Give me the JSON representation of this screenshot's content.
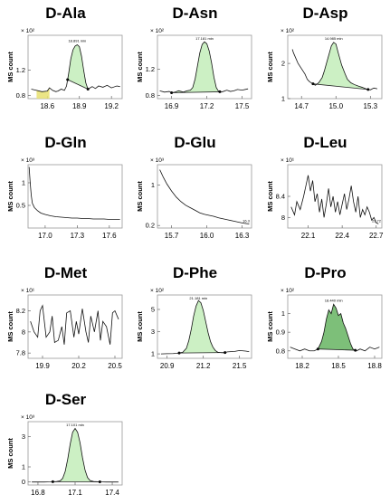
{
  "chart_data": [
    {
      "type": "line",
      "title": "D-Ala",
      "ylabel": "MS count",
      "yexp": "× 10²",
      "x": [
        18.45,
        18.5,
        18.55,
        18.6,
        18.62,
        18.65,
        18.68,
        18.7,
        18.73,
        18.76,
        18.78,
        18.8,
        18.82,
        18.84,
        18.86,
        18.88,
        18.9,
        18.92,
        18.94,
        18.96,
        18.98,
        19.0,
        19.02,
        19.05,
        19.08,
        19.12,
        19.16,
        19.2,
        19.25,
        19.28
      ],
      "y": [
        0.9,
        0.88,
        0.86,
        0.87,
        0.92,
        0.88,
        0.86,
        0.87,
        0.9,
        0.88,
        0.95,
        1.15,
        1.38,
        1.52,
        1.58,
        1.6,
        1.57,
        1.42,
        1.2,
        1.0,
        0.9,
        0.92,
        0.94,
        0.91,
        0.95,
        0.93,
        0.96,
        0.92,
        0.95,
        0.94
      ],
      "peak": [
        18.79,
        18.98
      ],
      "peak_label": "18.891 min",
      "shade": [
        18.5,
        18.62
      ],
      "xticks": [
        18.6,
        18.9,
        19.2
      ],
      "yticks": [
        0.8,
        1.2
      ],
      "xlim": [
        18.42,
        19.3
      ],
      "ylim": [
        0.75,
        1.75
      ]
    },
    {
      "type": "line",
      "title": "D-Asn",
      "ylabel": "MS count",
      "yexp": "× 10²",
      "x": [
        16.8,
        16.84,
        16.88,
        16.9,
        16.93,
        16.96,
        16.98,
        17.0,
        17.03,
        17.06,
        17.08,
        17.1,
        17.12,
        17.14,
        17.16,
        17.18,
        17.2,
        17.22,
        17.24,
        17.26,
        17.28,
        17.3,
        17.32,
        17.34,
        17.37,
        17.4,
        17.43,
        17.46,
        17.5,
        17.55
      ],
      "y": [
        0.87,
        0.85,
        0.86,
        0.84,
        0.85,
        0.87,
        0.86,
        0.85,
        0.87,
        0.88,
        0.92,
        1.05,
        1.25,
        1.45,
        1.58,
        1.62,
        1.59,
        1.48,
        1.3,
        1.08,
        0.92,
        0.86,
        0.85,
        0.86,
        0.88,
        0.86,
        0.87,
        0.89,
        0.88,
        0.9
      ],
      "peak": [
        16.9,
        17.31
      ],
      "peak_label": "17.181 min",
      "shade": null,
      "xticks": [
        16.9,
        17.2,
        17.5
      ],
      "yticks": [
        0.8,
        1.2
      ],
      "xlim": [
        16.78,
        17.58
      ],
      "ylim": [
        0.75,
        1.72
      ]
    },
    {
      "type": "line",
      "title": "D-Asp",
      "ylabel": "MS count",
      "yexp": "× 10²",
      "x": [
        14.62,
        14.63,
        14.65,
        14.67,
        14.7,
        14.73,
        14.75,
        14.77,
        14.8,
        14.82,
        14.85,
        14.88,
        14.9,
        14.93,
        14.96,
        14.98,
        15.0,
        15.02,
        15.05,
        15.08,
        15.1,
        15.13,
        15.16,
        15.2,
        15.23,
        15.26,
        15.28,
        15.3,
        15.33,
        15.36
      ],
      "y": [
        2.4,
        2.3,
        2.15,
        2.0,
        1.85,
        1.7,
        1.55,
        1.48,
        1.42,
        1.38,
        1.45,
        1.6,
        1.8,
        2.15,
        2.5,
        2.6,
        2.55,
        2.3,
        1.95,
        1.7,
        1.55,
        1.45,
        1.4,
        1.35,
        1.32,
        1.28,
        1.26,
        1.25,
        1.3,
        1.28
      ],
      "peak": [
        14.8,
        15.28
      ],
      "peak_label": "14.985 min",
      "shade": null,
      "xticks": [
        14.7,
        15.0,
        15.3
      ],
      "yticks": [
        1,
        2
      ],
      "xlim": [
        14.58,
        15.4
      ],
      "ylim": [
        1.0,
        2.8
      ]
    },
    {
      "type": "line",
      "title": "D-Gln",
      "ylabel": "MS count",
      "yexp": "× 10³",
      "x": [
        16.85,
        16.86,
        16.87,
        16.88,
        16.9,
        16.93,
        16.96,
        17.0,
        17.05,
        17.1,
        17.15,
        17.2,
        17.25,
        17.3,
        17.35,
        17.4,
        17.45,
        17.5,
        17.55,
        17.6,
        17.65,
        17.7
      ],
      "y": [
        1.35,
        1.0,
        0.72,
        0.55,
        0.45,
        0.38,
        0.33,
        0.3,
        0.27,
        0.25,
        0.24,
        0.23,
        0.22,
        0.22,
        0.21,
        0.21,
        0.2,
        0.2,
        0.2,
        0.19,
        0.19,
        0.19
      ],
      "peak": null,
      "peak_label": null,
      "shade": null,
      "xticks": [
        17.0,
        17.3,
        17.6
      ],
      "yticks": [
        0.5,
        1
      ],
      "xlim": [
        16.84,
        17.72
      ],
      "ylim": [
        0.0,
        1.4
      ]
    },
    {
      "type": "line",
      "title": "D-Glu",
      "ylabel": "MS count",
      "yexp": "× 10³",
      "x": [
        15.6,
        15.63,
        15.66,
        15.7,
        15.74,
        15.78,
        15.82,
        15.86,
        15.9,
        15.94,
        15.98,
        16.02,
        16.06,
        16.1,
        16.14,
        16.18,
        16.22,
        16.26,
        16.3,
        16.33,
        16.36
      ],
      "y": [
        1.3,
        1.15,
        1.02,
        0.88,
        0.76,
        0.67,
        0.6,
        0.55,
        0.5,
        0.45,
        0.42,
        0.4,
        0.38,
        0.35,
        0.33,
        0.31,
        0.29,
        0.27,
        0.25,
        0.24,
        0.23
      ],
      "peak": null,
      "peak_label": "16.3",
      "shade": null,
      "xticks": [
        15.7,
        16.0,
        16.3
      ],
      "yticks": [
        0.2,
        1
      ],
      "xlim": [
        15.58,
        16.38
      ],
      "ylim": [
        0.15,
        1.4
      ]
    },
    {
      "type": "line",
      "title": "D-Leu",
      "ylabel": "MS count",
      "yexp": "× 10¹",
      "x": [
        21.95,
        21.98,
        22.0,
        22.03,
        22.06,
        22.08,
        22.1,
        22.12,
        22.14,
        22.16,
        22.18,
        22.2,
        22.22,
        22.24,
        22.26,
        22.28,
        22.3,
        22.32,
        22.34,
        22.36,
        22.38,
        22.4,
        22.42,
        22.44,
        22.46,
        22.48,
        22.5,
        22.52,
        22.54,
        22.56,
        22.58,
        22.6,
        22.62,
        22.64,
        22.66,
        22.68,
        22.7,
        22.72
      ],
      "y": [
        8.2,
        8.05,
        8.3,
        8.15,
        8.4,
        8.6,
        8.8,
        8.5,
        8.7,
        8.3,
        8.45,
        8.1,
        8.35,
        8.0,
        8.25,
        8.55,
        8.2,
        8.4,
        8.1,
        8.3,
        8.05,
        8.25,
        8.45,
        8.15,
        8.35,
        8.6,
        8.3,
        8.1,
        8.4,
        8.0,
        8.15,
        8.05,
        8.2,
        8.1,
        7.95,
        8.0,
        7.9,
        7.88
      ],
      "peak": null,
      "peak_label": "22.72",
      "shade": null,
      "xticks": [
        22.1,
        22.4,
        22.7
      ],
      "yticks": [
        8,
        8.4
      ],
      "xlim": [
        21.92,
        22.75
      ],
      "ylim": [
        7.8,
        9.0
      ]
    },
    {
      "type": "line",
      "title": "D-Met",
      "ylabel": "MS count",
      "yexp": "× 10¹",
      "x": [
        19.8,
        19.83,
        19.86,
        19.88,
        19.9,
        19.93,
        19.96,
        19.98,
        20.0,
        20.03,
        20.06,
        20.08,
        20.1,
        20.13,
        20.16,
        20.18,
        20.2,
        20.23,
        20.26,
        20.28,
        20.3,
        20.33,
        20.36,
        20.38,
        20.4,
        20.43,
        20.46,
        20.48,
        20.5,
        20.53
      ],
      "y": [
        8.1,
        8.0,
        7.95,
        8.2,
        8.25,
        7.95,
        8.0,
        8.15,
        7.9,
        7.92,
        8.05,
        7.88,
        8.18,
        8.2,
        7.95,
        8.1,
        7.98,
        8.22,
        8.0,
        7.9,
        8.15,
        8.0,
        8.2,
        7.92,
        8.1,
        8.05,
        7.88,
        8.18,
        8.2,
        8.12
      ],
      "peak": null,
      "peak_label": null,
      "shade": null,
      "xticks": [
        19.9,
        20.2,
        20.5
      ],
      "yticks": [
        7.8,
        8,
        8.2
      ],
      "xlim": [
        19.78,
        20.56
      ],
      "ylim": [
        7.75,
        8.35
      ]
    },
    {
      "type": "line",
      "title": "D-Phe",
      "ylabel": "MS count",
      "yexp": "× 10²",
      "x": [
        20.85,
        20.9,
        20.95,
        20.98,
        21.0,
        21.03,
        21.06,
        21.08,
        21.1,
        21.12,
        21.14,
        21.16,
        21.18,
        21.2,
        21.22,
        21.24,
        21.26,
        21.28,
        21.3,
        21.32,
        21.34,
        21.36,
        21.38,
        21.4,
        21.43,
        21.46,
        21.5,
        21.55,
        21.58
      ],
      "y": [
        1.0,
        1.02,
        1.03,
        1.05,
        1.08,
        1.15,
        1.5,
        2.2,
        3.2,
        4.4,
        5.3,
        5.8,
        5.6,
        4.9,
        3.9,
        2.9,
        2.1,
        1.6,
        1.3,
        1.15,
        1.12,
        1.1,
        1.12,
        1.18,
        1.2,
        1.22,
        1.3,
        1.25,
        1.2
      ],
      "peak": [
        21.0,
        21.38
      ],
      "peak_label": "21.181 min",
      "shade": null,
      "xticks": [
        20.9,
        21.2,
        21.5
      ],
      "yticks": [
        1,
        3,
        5
      ],
      "xlim": [
        20.82,
        21.6
      ],
      "ylim": [
        0.6,
        6.3
      ]
    },
    {
      "type": "line",
      "title": "D-Pro",
      "ylabel": "MS count",
      "yexp": "× 10²",
      "x": [
        18.1,
        18.14,
        18.18,
        18.22,
        18.26,
        18.3,
        18.33,
        18.36,
        18.38,
        18.4,
        18.42,
        18.44,
        18.46,
        18.48,
        18.5,
        18.52,
        18.54,
        18.56,
        18.58,
        18.6,
        18.62,
        18.65,
        18.68,
        18.72,
        18.76,
        18.8,
        18.84
      ],
      "y": [
        0.82,
        0.81,
        0.8,
        0.81,
        0.8,
        0.8,
        0.81,
        0.85,
        0.9,
        0.97,
        1.02,
        1.0,
        1.05,
        1.03,
        0.99,
        1.0,
        0.95,
        0.92,
        0.88,
        0.84,
        0.81,
        0.8,
        0.81,
        0.8,
        0.82,
        0.81,
        0.82
      ],
      "peak": [
        18.33,
        18.64
      ],
      "peak_label": "18.440 min",
      "shade": [
        18.33,
        18.64
      ],
      "xticks": [
        18.2,
        18.5,
        18.8
      ],
      "yticks": [
        0.8,
        0.9,
        1
      ],
      "xlim": [
        18.08,
        18.86
      ],
      "ylim": [
        0.76,
        1.1
      ]
    },
    {
      "type": "line",
      "title": "D-Ser",
      "ylabel": "MS count",
      "yexp": "× 10³",
      "x": [
        16.75,
        16.8,
        16.85,
        16.9,
        16.95,
        16.98,
        17.0,
        17.02,
        17.04,
        17.06,
        17.08,
        17.1,
        17.12,
        17.14,
        17.16,
        17.18,
        17.2,
        17.22,
        17.25,
        17.3,
        17.35,
        17.4,
        17.45
      ],
      "y": [
        0.0,
        0.0,
        0.0,
        0.01,
        0.03,
        0.08,
        0.25,
        0.7,
        1.5,
        2.5,
        3.3,
        3.55,
        3.3,
        2.6,
        1.6,
        0.8,
        0.3,
        0.1,
        0.03,
        0.01,
        0.0,
        0.0,
        0.0
      ],
      "peak": [
        16.92,
        17.3
      ],
      "peak_label": "17.101 min",
      "shade": null,
      "xticks": [
        16.8,
        17.1,
        17.4
      ],
      "yticks": [
        0,
        1,
        3
      ],
      "xlim": [
        16.72,
        17.48
      ],
      "ylim": [
        -0.2,
        4.0
      ]
    }
  ]
}
